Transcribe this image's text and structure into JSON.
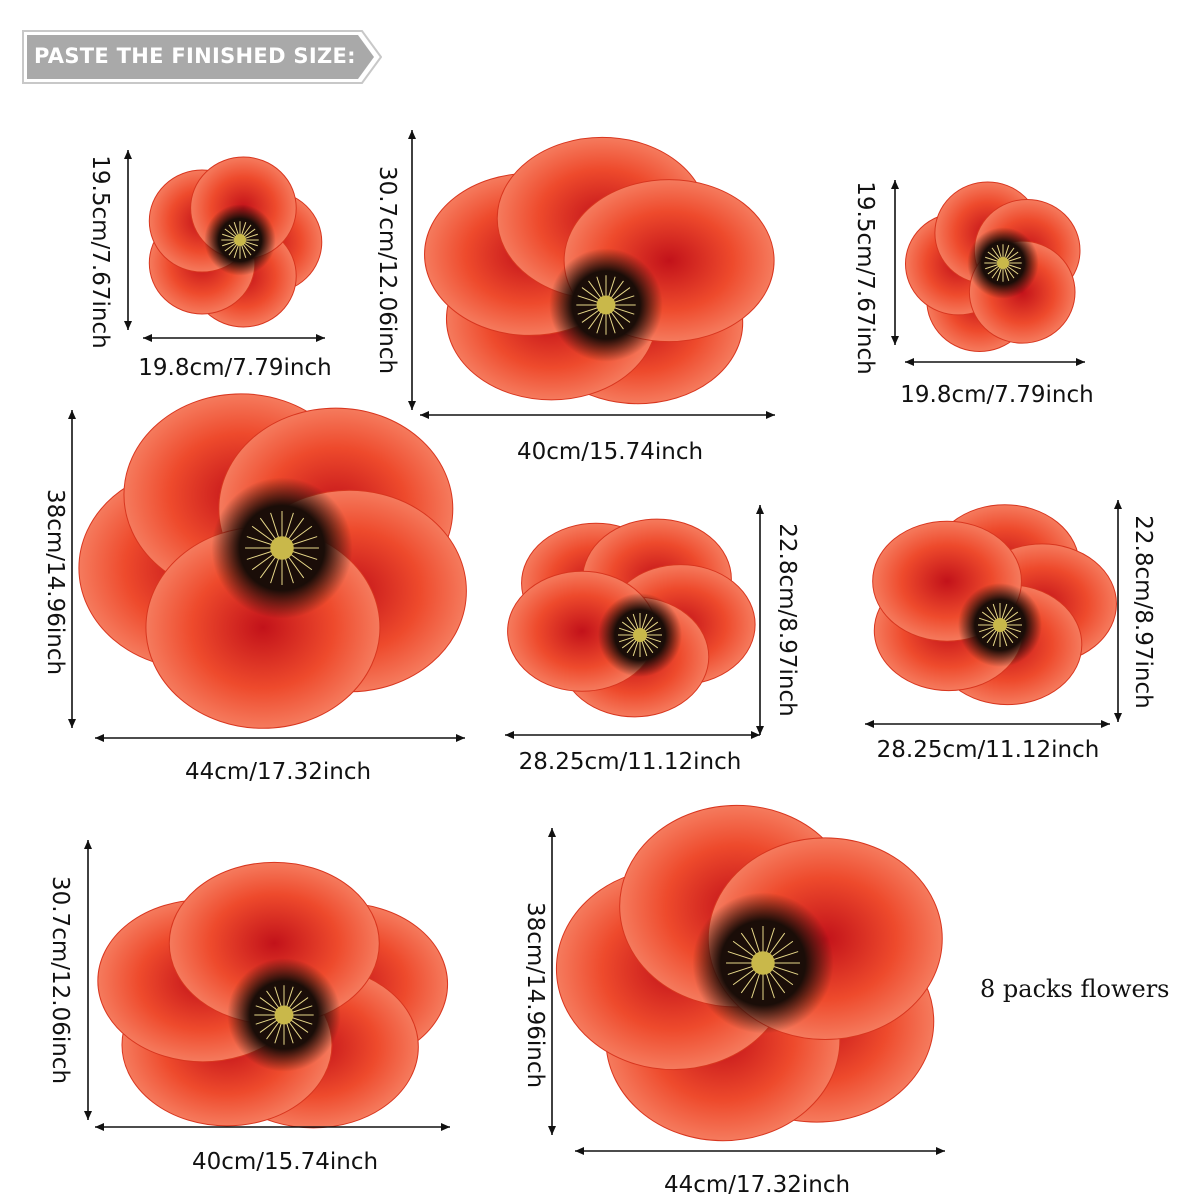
{
  "banner": {
    "text": "PASTE THE FINISHED SIZE:"
  },
  "flowers": [
    {
      "width_label": "19.8cm/7.79inch",
      "height_label": "19.5cm/7.67inch"
    },
    {
      "width_label": "40cm/15.74inch",
      "height_label": "30.7cm/12.06inch"
    },
    {
      "width_label": "19.8cm/7.79inch",
      "height_label": "19.5cm/7.67inch"
    },
    {
      "width_label": "44cm/17.32inch",
      "height_label": "38cm/14.96inch"
    },
    {
      "width_label": "28.25cm/11.12inch",
      "height_label": "22.8cm/8.97inch"
    },
    {
      "width_label": "28.25cm/11.12inch",
      "height_label": "22.8cm/8.97inch"
    },
    {
      "width_label": "40cm/15.74inch",
      "height_label": "30.7cm/12.06inch"
    },
    {
      "width_label": "44cm/17.32inch",
      "height_label": "38cm/14.96inch"
    }
  ],
  "note": "8 packs flowers",
  "colors": {
    "petal": "#ee4a2c",
    "petal_light": "#f7876a",
    "center": "#1a0d08",
    "stamen": "#e8d98a",
    "banner": "#a9a9a9"
  }
}
